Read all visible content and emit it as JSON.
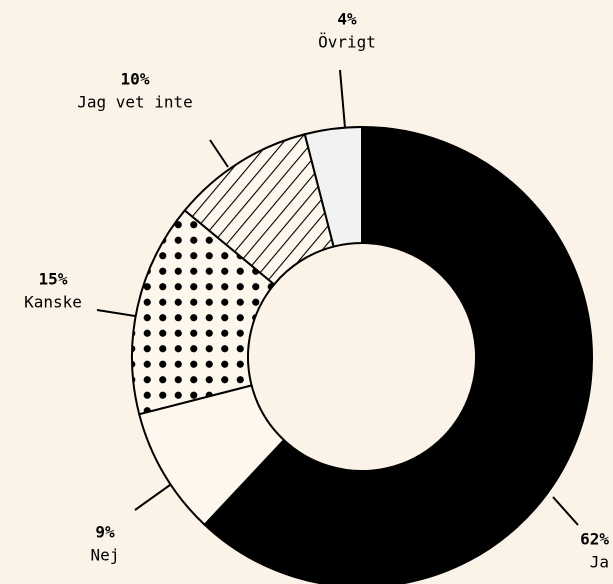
{
  "chart_data": {
    "type": "pie",
    "donut": true,
    "categories": [
      "Ja",
      "Nej",
      "Kanske",
      "Jag vet inte",
      "Övrigt"
    ],
    "values": [
      62,
      9,
      15,
      10,
      4
    ],
    "value_labels": [
      "62%",
      "9%",
      "15%",
      "10%",
      "4%"
    ],
    "colors": [
      "#000000",
      "#fdf7ee",
      "dots",
      "stripes",
      "#f2f2f2"
    ]
  }
}
